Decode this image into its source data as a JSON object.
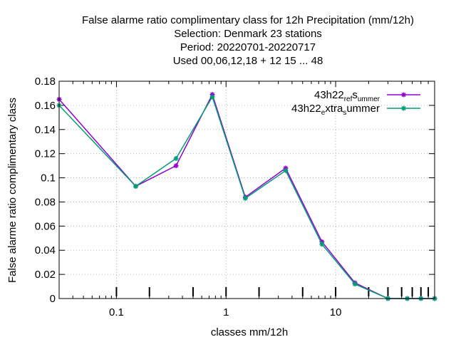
{
  "chart_data": {
    "type": "line",
    "title_lines": [
      "False alarme ratio complimentary class  for 12h Precipitation (mm/12h)",
      "Selection: Denmark      23 stations",
      "Period: 20220701-20220717",
      "Used  00,06,12,18  + 12 15 ... 48"
    ],
    "xlabel": "classes mm/12h",
    "ylabel": "False alarme ratio complimentary class",
    "x_scale": "log",
    "xlim": [
      0.03,
      80
    ],
    "ylim": [
      0,
      0.18
    ],
    "x_ticks": [
      {
        "value": 0.1,
        "label": "0.1"
      },
      {
        "value": 1,
        "label": "1"
      },
      {
        "value": 10,
        "label": "10"
      }
    ],
    "y_ticks": [
      {
        "value": 0,
        "label": "0"
      },
      {
        "value": 0.02,
        "label": "0.02"
      },
      {
        "value": 0.04,
        "label": "0.04"
      },
      {
        "value": 0.06,
        "label": "0.06"
      },
      {
        "value": 0.08,
        "label": "0.08"
      },
      {
        "value": 0.1,
        "label": "0.1"
      },
      {
        "value": 0.12,
        "label": "0.12"
      },
      {
        "value": 0.14,
        "label": "0.14"
      },
      {
        "value": 0.16,
        "label": "0.16"
      },
      {
        "value": 0.18,
        "label": "0.18"
      }
    ],
    "class_marks": [
      0.1,
      0.2,
      0.5,
      1,
      2,
      5,
      10,
      20,
      30,
      40,
      50,
      60,
      70
    ],
    "grid": true,
    "legend_position": "top-right",
    "series": [
      {
        "name_parts": [
          {
            "text": "43h22",
            "sub": false
          },
          {
            "text": "ref",
            "sub": true
          },
          {
            "text": "s",
            "sub": false
          },
          {
            "text": "ummer",
            "sub": true
          }
        ],
        "color": "#9400d3",
        "x": [
          0.03,
          0.15,
          0.35,
          0.75,
          1.5,
          3.5,
          7.5,
          15,
          30,
          45,
          60,
          80
        ],
        "y": [
          0.165,
          0.093,
          0.11,
          0.169,
          0.084,
          0.108,
          0.047,
          0.013,
          0,
          0,
          0,
          0
        ]
      },
      {
        "name_parts": [
          {
            "text": "43h22",
            "sub": false
          },
          {
            "text": "e",
            "sub": true
          },
          {
            "text": "xtra",
            "sub": false
          },
          {
            "text": "s",
            "sub": true
          },
          {
            "text": "ummer",
            "sub": false
          }
        ],
        "color": "#009e73",
        "x": [
          0.03,
          0.15,
          0.35,
          0.75,
          1.5,
          3.5,
          7.5,
          15,
          30,
          45,
          60,
          80
        ],
        "y": [
          0.16,
          0.093,
          0.116,
          0.167,
          0.083,
          0.106,
          0.045,
          0.012,
          0,
          0,
          0,
          0
        ]
      }
    ]
  }
}
